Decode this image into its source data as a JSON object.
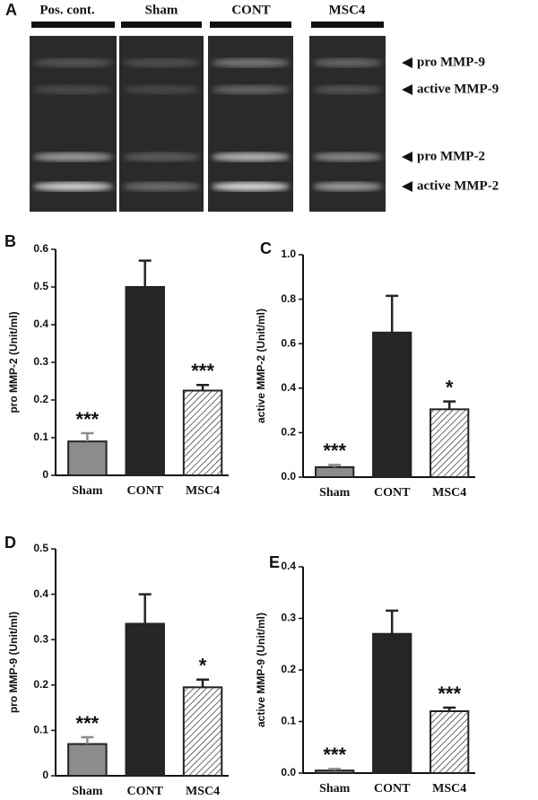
{
  "figure_a": {
    "panel": "A",
    "lanes": [
      "Pos. cont.",
      "Sham",
      "CONT",
      "MSC4"
    ],
    "bands": [
      "pro MMP-9",
      "active MMP-9",
      "pro MMP-2",
      "active MMP-2"
    ]
  },
  "chart_data": [
    {
      "type": "bar",
      "panel": "B",
      "ylabel": "pro MMP-2 (Unit/ml)",
      "categories": [
        "Sham",
        "CONT",
        "MSC4"
      ],
      "values": [
        0.09,
        0.5,
        0.225
      ],
      "errors": [
        0.022,
        0.07,
        0.015
      ],
      "annotations": [
        "***",
        null,
        "***"
      ],
      "colors": [
        "#8c8c8c",
        "#262626",
        "#ffffff"
      ],
      "hatched": [
        false,
        false,
        true
      ],
      "ylim": [
        0,
        0.6
      ],
      "yticks": [
        0,
        0.1,
        0.2,
        0.3,
        0.4,
        0.5,
        0.6
      ]
    },
    {
      "type": "bar",
      "panel": "C",
      "ylabel": "active MMP-2 (Unit/ml)",
      "categories": [
        "Sham",
        "CONT",
        "MSC4"
      ],
      "values": [
        0.045,
        0.65,
        0.305
      ],
      "errors": [
        0.01,
        0.165,
        0.035
      ],
      "annotations": [
        "***",
        null,
        "*"
      ],
      "colors": [
        "#8c8c8c",
        "#262626",
        "#ffffff"
      ],
      "hatched": [
        false,
        false,
        true
      ],
      "ylim": [
        0,
        1.0
      ],
      "yticks": [
        {
          "value": 0,
          "label": "0.0"
        },
        0.2,
        0.4,
        0.6,
        0.8,
        {
          "value": 1,
          "label": "1.0"
        }
      ]
    },
    {
      "type": "bar",
      "panel": "D",
      "ylabel": "pro MMP-9 (Unit/ml)",
      "categories": [
        "Sham",
        "CONT",
        "MSC4"
      ],
      "values": [
        0.07,
        0.335,
        0.195
      ],
      "errors": [
        0.015,
        0.065,
        0.017
      ],
      "annotations": [
        "***",
        null,
        "*"
      ],
      "colors": [
        "#8c8c8c",
        "#262626",
        "#ffffff"
      ],
      "hatched": [
        false,
        false,
        true
      ],
      "ylim": [
        0,
        0.5
      ],
      "yticks": [
        0,
        0.1,
        0.2,
        0.3,
        0.4,
        0.5
      ]
    },
    {
      "type": "bar",
      "panel": "E",
      "ylabel": "active MMP-9 (Unit/ml)",
      "categories": [
        "Sham",
        "CONT",
        "MSC4"
      ],
      "values": [
        0.005,
        0.27,
        0.12
      ],
      "errors": [
        0.003,
        0.045,
        0.007
      ],
      "annotations": [
        "***",
        null,
        "***"
      ],
      "colors": [
        "#8c8c8c",
        "#262626",
        "#ffffff"
      ],
      "hatched": [
        false,
        false,
        true
      ],
      "ylim": [
        0,
        0.4
      ],
      "yticks": [
        {
          "value": 0,
          "label": "0.0"
        },
        0.1,
        0.2,
        0.3,
        0.4
      ]
    }
  ]
}
